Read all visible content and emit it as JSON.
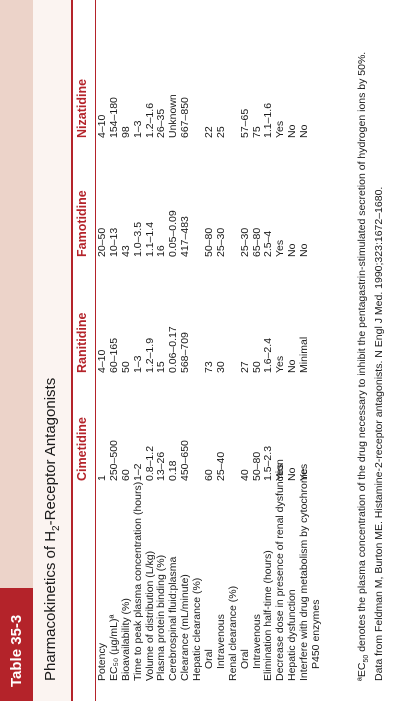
{
  "table_tag": "Table 35-3",
  "title_pre": "Pharmacokinetics of H",
  "title_sub": "2",
  "title_post": "-Receptor Antagonists",
  "columns": [
    "Cimetidine",
    "Ranitidine",
    "Famotidine",
    "Nizatidine"
  ],
  "rows": [
    {
      "label": "Potency",
      "v": [
        "1",
        "4–10",
        "20–50",
        "4–10"
      ]
    },
    {
      "label": "EC₅₀ (µg/mL)ª",
      "v": [
        "250–500",
        "60–165",
        "10–13",
        "154–180"
      ]
    },
    {
      "label": "Bioavailability (%)",
      "v": [
        "60",
        "50",
        "43",
        "98"
      ]
    },
    {
      "label": "Time to peak plasma concentration (hours)",
      "v": [
        "1–2",
        "1–3",
        "1.0–3.5",
        "1–3"
      ]
    },
    {
      "label": "Volume of distribution (L/kg)",
      "v": [
        "0.8–1.2",
        "1.2–1.9",
        "1.1–1.4",
        "1.2–1.6"
      ]
    },
    {
      "label": "Plasma protein binding (%)",
      "v": [
        "13–26",
        "15",
        "16",
        "26–35"
      ]
    },
    {
      "label": "Cerebrospinal fluid:plasma",
      "v": [
        "0.18",
        "0.06–0.17",
        "0.05–0.09",
        "Unknown"
      ]
    },
    {
      "label": "Clearance (mL/minute)",
      "v": [
        "450–650",
        "568–709",
        "417–483",
        "667–850"
      ]
    },
    {
      "label": "Hepatic clearance (%)",
      "v": [
        "",
        "",
        "",
        ""
      ]
    },
    {
      "label": "Oral",
      "indent": true,
      "v": [
        "60",
        "73",
        "50–80",
        "22"
      ]
    },
    {
      "label": "Intravenous",
      "indent": true,
      "v": [
        "25–40",
        "30",
        "25–30",
        "25"
      ]
    },
    {
      "label": "Renal clearance (%)",
      "v": [
        "",
        "",
        "",
        ""
      ]
    },
    {
      "label": "Oral",
      "indent": true,
      "v": [
        "40",
        "27",
        "25–30",
        "57–65"
      ]
    },
    {
      "label": "Intravenous",
      "indent": true,
      "v": [
        "50–80",
        "50",
        "65–80",
        "75"
      ]
    },
    {
      "label": "Elimination half-time (hours)",
      "v": [
        "1.5–2.3",
        "1.6–2.4",
        "2.5–4",
        "1.1–1.6"
      ]
    },
    {
      "label": "Decrease dose in presence of renal dysfunction",
      "v": [
        "Yes",
        "Yes",
        "Yes",
        "Yes"
      ]
    },
    {
      "label": "Hepatic dysfunction",
      "v": [
        "No",
        "No",
        "No",
        "No"
      ]
    },
    {
      "label": "Interfere with drug metabolism by cytochrome",
      "v": [
        "Yes",
        "Minimal",
        "No",
        "No"
      ]
    },
    {
      "label": "P450 enzymes",
      "indent": true,
      "v": [
        "",
        "",
        "",
        ""
      ]
    }
  ],
  "footnote_1_pre": "ªEC",
  "footnote_1_sub": "50",
  "footnote_1_post": " denotes the plasma concentration of the drug necessary to inhibit the pentagastrin-stimulated secretion of hydrogen ions by 50%.",
  "footnote_2": "Data from Feldman M, Burton ME. Histamine-2-receptor antagonists. N Engl J Med. 1990;323:1672–1680."
}
